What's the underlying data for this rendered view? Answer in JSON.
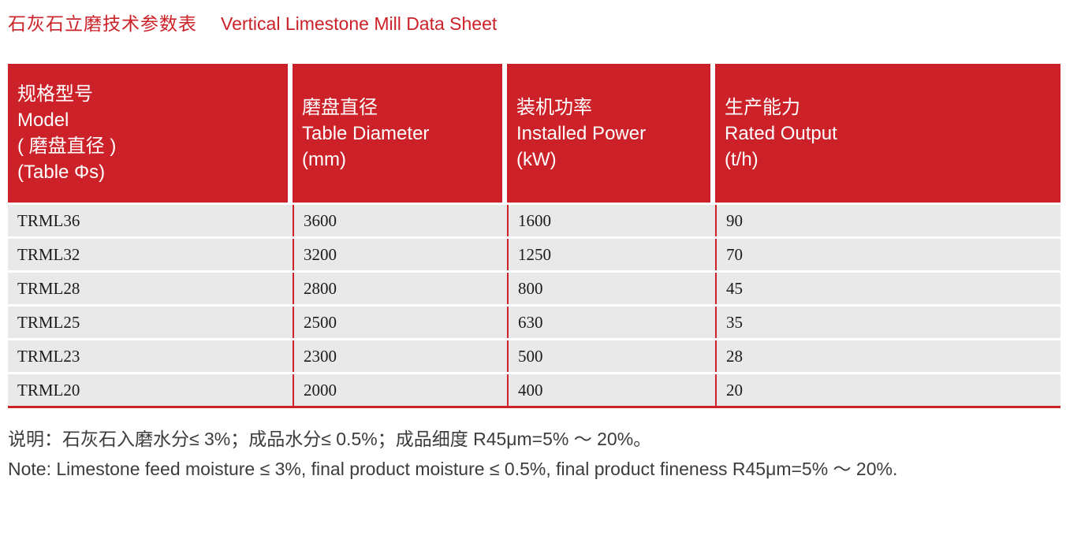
{
  "page": {
    "title_zh": "石灰石立磨技术参数表",
    "title_en": "Vertical Limestone Mill Data Sheet"
  },
  "table": {
    "headers": [
      "规格型号\nModel\n( 磨盘直径 )\n(Table Φs)",
      "磨盘直径\nTable Diameter\n(mm)",
      "装机功率\nInstalled Power\n(kW)",
      "生产能力\nRated Output\n(t/h)"
    ],
    "rows": [
      [
        "TRML36",
        "3600",
        "1600",
        "90"
      ],
      [
        "TRML32",
        "3200",
        "1250",
        "70"
      ],
      [
        "TRML28",
        "2800",
        "800",
        "45"
      ],
      [
        "TRML25",
        "2500",
        "630",
        "35"
      ],
      [
        "TRML23",
        "2300",
        "500",
        "28"
      ],
      [
        "TRML20",
        "2000",
        "400",
        "20"
      ]
    ]
  },
  "notes": {
    "zh": "说明：石灰石入磨水分≤ 3%；成品水分≤ 0.5%；成品细度 R45μm=5% ～ 20%。",
    "en": "Note: Limestone feed moisture ≤ 3%, final product moisture ≤ 0.5%, final product fineness R45μm=5% ～ 20%."
  },
  "colors": {
    "accent_red": "#cc2128",
    "row_bg": "#e9e9e9",
    "text_dark": "#3c3c3c"
  }
}
